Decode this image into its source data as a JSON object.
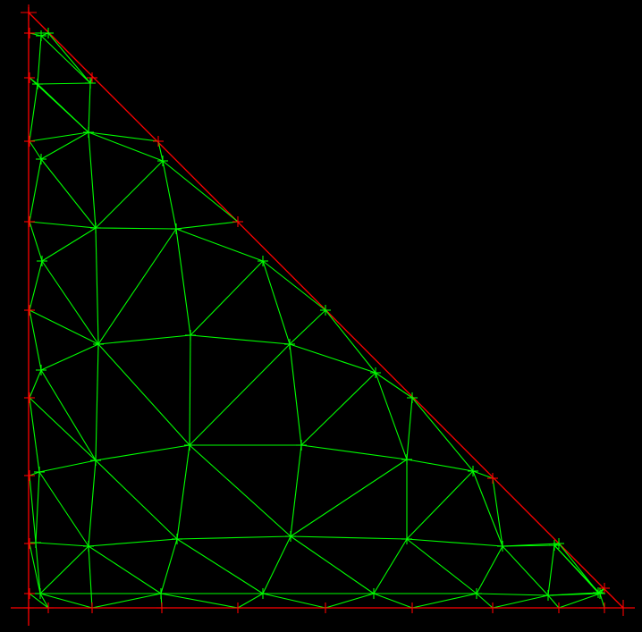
{
  "colors": {
    "background": "#000000",
    "mesh_edges": "#00ff00",
    "boundary": "#ff0000",
    "interior_nodes": "#00ff00",
    "boundary_nodes": "#ff0000"
  },
  "mesh": {
    "domain": "right-triangle",
    "boundary_corner_ids": [
      "B0",
      "B1",
      "B2"
    ],
    "node_count": 72,
    "edge_style": "line",
    "node_marker": "plus"
  }
}
